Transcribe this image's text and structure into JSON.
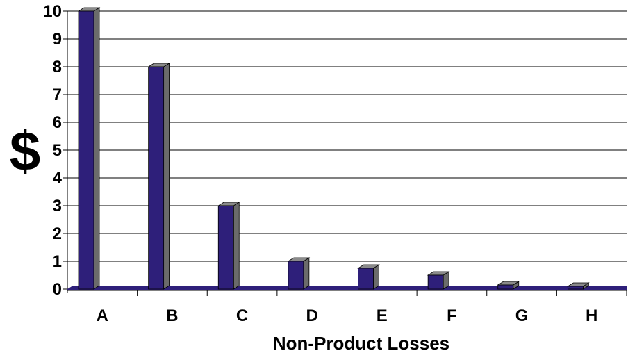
{
  "chart_data": {
    "type": "bar",
    "categories": [
      "A",
      "B",
      "C",
      "D",
      "E",
      "F",
      "G",
      "H"
    ],
    "values": [
      10,
      8,
      3,
      1,
      0.75,
      0.5,
      0.15,
      0.1
    ],
    "title": "",
    "xlabel": "Non-Product Losses",
    "ylabel": "$",
    "ylim": [
      0,
      10
    ],
    "yticks": [
      "0",
      "1",
      "2",
      "3",
      "4",
      "5",
      "6",
      "7",
      "8",
      "9",
      "10"
    ],
    "grid": true,
    "colors": {
      "bar_front": "#2e1f7a",
      "bar_side": "#6b6b6b",
      "bar_top": "#8a8a8a",
      "floor": "#2e1f7a",
      "grid": "#000000"
    }
  }
}
